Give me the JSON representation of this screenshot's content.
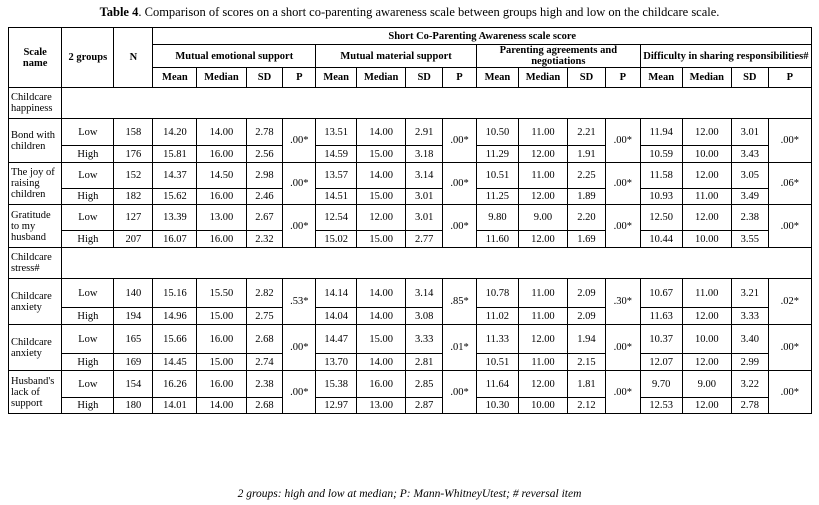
{
  "caption": {
    "label": "Table 4",
    "text": ". Comparison of scores on a short co-parenting awareness scale between groups high and low on the childcare scale."
  },
  "header": {
    "scale_name": "Scale name",
    "groups": "2 groups",
    "n": "N",
    "super": "Short Co-Parenting Awareness scale score",
    "domains": [
      "Mutual emotional support",
      "Mutual material support",
      "Parenting agreements and negotiations",
      "Difficulty in sharing responsibilities#"
    ],
    "sub": [
      "Mean",
      "Median",
      "SD",
      "P"
    ]
  },
  "sections": [
    {
      "title": "Childcare happiness",
      "scales": [
        {
          "name": "Bond with children",
          "rows": [
            {
              "group": "Low",
              "n": "158",
              "vals": [
                [
                  "14.20",
                  "14.00",
                  "2.78"
                ],
                [
                  "13.51",
                  "14.00",
                  "2.91"
                ],
                [
                  "10.50",
                  "11.00",
                  "2.21"
                ],
                [
                  "11.94",
                  "12.00",
                  "3.01"
                ]
              ]
            },
            {
              "group": "High",
              "n": "176",
              "vals": [
                [
                  "15.81",
                  "16.00",
                  "2.56"
                ],
                [
                  "14.59",
                  "15.00",
                  "3.18"
                ],
                [
                  "11.29",
                  "12.00",
                  "1.91"
                ],
                [
                  "10.59",
                  "10.00",
                  "3.43"
                ]
              ]
            }
          ],
          "p": [
            ".00*",
            ".00*",
            ".00*",
            ".00*"
          ]
        },
        {
          "name": "The joy of raising children",
          "rows": [
            {
              "group": "Low",
              "n": "152",
              "vals": [
                [
                  "14.37",
                  "14.50",
                  "2.98"
                ],
                [
                  "13.57",
                  "14.00",
                  "3.14"
                ],
                [
                  "10.51",
                  "11.00",
                  "2.25"
                ],
                [
                  "11.58",
                  "12.00",
                  "3.05"
                ]
              ]
            },
            {
              "group": "High",
              "n": "182",
              "vals": [
                [
                  "15.62",
                  "16.00",
                  "2.46"
                ],
                [
                  "14.51",
                  "15.00",
                  "3.01"
                ],
                [
                  "11.25",
                  "12.00",
                  "1.89"
                ],
                [
                  "10.93",
                  "11.00",
                  "3.49"
                ]
              ]
            }
          ],
          "p": [
            ".00*",
            ".00*",
            ".00*",
            ".06*"
          ]
        },
        {
          "name": "Gratitude to my husband",
          "rows": [
            {
              "group": "Low",
              "n": "127",
              "vals": [
                [
                  "13.39",
                  "13.00",
                  "2.67"
                ],
                [
                  "12.54",
                  "12.00",
                  "3.01"
                ],
                [
                  "9.80",
                  "9.00",
                  "2.20"
                ],
                [
                  "12.50",
                  "12.00",
                  "2.38"
                ]
              ]
            },
            {
              "group": "High",
              "n": "207",
              "vals": [
                [
                  "16.07",
                  "16.00",
                  "2.32"
                ],
                [
                  "15.02",
                  "15.00",
                  "2.77"
                ],
                [
                  "11.60",
                  "12.00",
                  "1.69"
                ],
                [
                  "10.44",
                  "10.00",
                  "3.55"
                ]
              ]
            }
          ],
          "p": [
            ".00*",
            ".00*",
            ".00*",
            ".00*"
          ]
        }
      ]
    },
    {
      "title": "Childcare stress#",
      "scales": [
        {
          "name": "Childcare anxiety",
          "rows": [
            {
              "group": "Low",
              "n": "140",
              "vals": [
                [
                  "15.16",
                  "15.50",
                  "2.82"
                ],
                [
                  "14.14",
                  "14.00",
                  "3.14"
                ],
                [
                  "10.78",
                  "11.00",
                  "2.09"
                ],
                [
                  "10.67",
                  "11.00",
                  "3.21"
                ]
              ]
            },
            {
              "group": "High",
              "n": "194",
              "vals": [
                [
                  "14.96",
                  "15.00",
                  "2.75"
                ],
                [
                  "14.04",
                  "14.00",
                  "3.08"
                ],
                [
                  "11.02",
                  "11.00",
                  "2.09"
                ],
                [
                  "11.63",
                  "12.00",
                  "3.33"
                ]
              ]
            }
          ],
          "p": [
            ".53*",
            ".85*",
            ".30*",
            ".02*"
          ]
        },
        {
          "name": "Childcare anxiety",
          "rows": [
            {
              "group": "Low",
              "n": "165",
              "vals": [
                [
                  "15.66",
                  "16.00",
                  "2.68"
                ],
                [
                  "14.47",
                  "15.00",
                  "3.33"
                ],
                [
                  "11.33",
                  "12.00",
                  "1.94"
                ],
                [
                  "10.37",
                  "10.00",
                  "3.40"
                ]
              ]
            },
            {
              "group": "High",
              "n": "169",
              "vals": [
                [
                  "14.45",
                  "15.00",
                  "2.74"
                ],
                [
                  "13.70",
                  "14.00",
                  "2.81"
                ],
                [
                  "10.51",
                  "11.00",
                  "2.15"
                ],
                [
                  "12.07",
                  "12.00",
                  "2.99"
                ]
              ]
            }
          ],
          "p": [
            ".00*",
            ".01*",
            ".00*",
            ".00*"
          ]
        },
        {
          "name": "Husband's lack of support",
          "rows": [
            {
              "group": "Low",
              "n": "154",
              "vals": [
                [
                  "16.26",
                  "16.00",
                  "2.38"
                ],
                [
                  "15.38",
                  "16.00",
                  "2.85"
                ],
                [
                  "11.64",
                  "12.00",
                  "1.81"
                ],
                [
                  "9.70",
                  "9.00",
                  "3.22"
                ]
              ]
            },
            {
              "group": "High",
              "n": "180",
              "vals": [
                [
                  "14.01",
                  "14.00",
                  "2.68"
                ],
                [
                  "12.97",
                  "13.00",
                  "2.87"
                ],
                [
                  "10.30",
                  "10.00",
                  "2.12"
                ],
                [
                  "12.53",
                  "12.00",
                  "2.78"
                ]
              ]
            }
          ],
          "p": [
            ".00*",
            ".00*",
            ".00*",
            ".00*"
          ]
        }
      ]
    }
  ],
  "footnote": "2 groups: high and low at median; P: Mann-WhitneyUtest; # reversal item"
}
